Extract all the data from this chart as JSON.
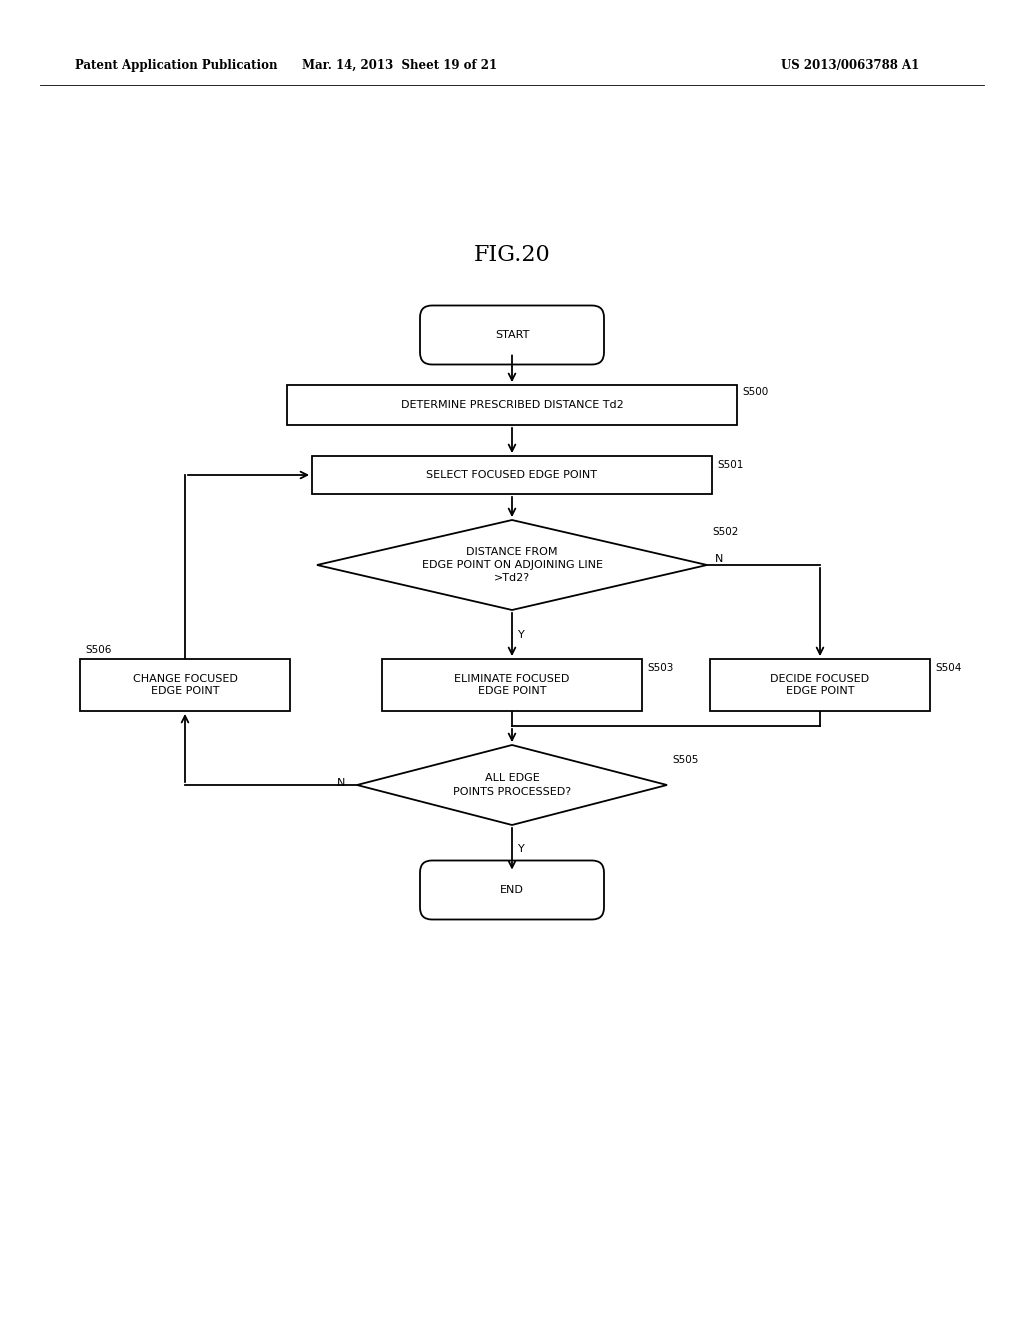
{
  "title": "FIG.20",
  "header_left": "Patent Application Publication",
  "header_mid": "Mar. 14, 2013  Sheet 19 of 21",
  "header_right": "US 2013/0063788 A1",
  "bg_color": "#ffffff",
  "font_size_nodes": 8.0,
  "font_size_title": 16,
  "font_size_header": 8.5,
  "font_size_tag": 7.5,
  "lw": 1.3
}
